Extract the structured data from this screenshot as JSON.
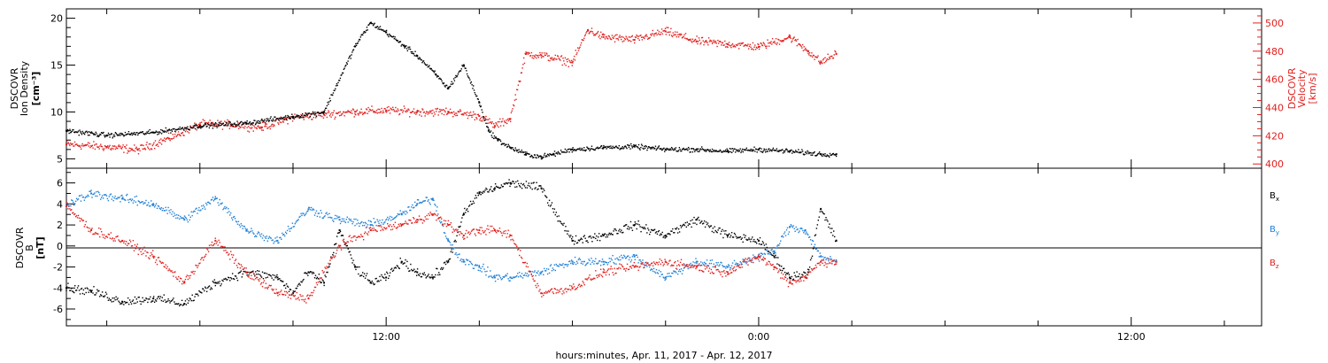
{
  "colors": {
    "black": "#000000",
    "red": "#e0201e",
    "blue": "#1e7fd6"
  },
  "chart_data": [
    {
      "type": "scatter",
      "panel": "top",
      "left_axis_label": [
        "DSCOVR",
        "Ion Density",
        "[cm⁻³]"
      ],
      "right_axis_label": [
        "DSCOVR",
        "Velocity",
        "[km/s]"
      ],
      "yticks_left": [
        "5",
        "10",
        "15",
        "20"
      ],
      "yticks_right": [
        "400",
        "420",
        "440",
        "460",
        "480",
        "500"
      ],
      "ylim_left": [
        4,
        21
      ],
      "ylim_right": [
        397,
        510
      ],
      "xlim_hours": [
        -10.3,
        28.2
      ],
      "series": [
        {
          "name": "Ion Density",
          "axis": "left",
          "color": "black",
          "x": [
            -10.3,
            -9.0,
            -7.5,
            -6.0,
            -4.5,
            -3.0,
            -2.0,
            -1.0,
            -0.5,
            0.0,
            0.6,
            1.0,
            1.6,
            2.0,
            2.5,
            3.0,
            3.3,
            3.6,
            4.0,
            4.5,
            5.0,
            5.4,
            6.0,
            7.0,
            8.0,
            9.0,
            10.0,
            11.0,
            12.0,
            13.0,
            14.0,
            14.5
          ],
          "y": [
            8,
            7.5,
            7.8,
            8.5,
            8.8,
            9.5,
            10,
            17,
            19.5,
            18.5,
            17,
            16,
            14,
            12.5,
            15,
            11,
            8,
            7,
            6.2,
            5.5,
            5.2,
            5.5,
            6.0,
            6.2,
            6.3,
            6.0,
            6.0,
            5.8,
            6.0,
            5.8,
            5.5,
            5.5
          ]
        },
        {
          "name": "Velocity",
          "axis": "right",
          "color": "red",
          "x": [
            -10.3,
            -9.0,
            -8.0,
            -7.0,
            -6.0,
            -5.0,
            -4.0,
            -3.0,
            -2.0,
            -1.0,
            0.0,
            1.0,
            2.0,
            3.0,
            3.5,
            4.0,
            4.5,
            5.0,
            6.0,
            6.5,
            7.0,
            8.0,
            9.0,
            10.0,
            11.0,
            12.0,
            13.0,
            13.6,
            14.0,
            14.5
          ],
          "y": [
            414,
            412,
            410,
            418,
            428,
            428,
            426,
            433,
            435,
            437,
            438,
            437,
            437,
            434,
            427,
            432,
            478,
            477,
            472,
            495,
            490,
            488,
            494,
            487,
            485,
            483,
            490,
            480,
            472,
            478
          ]
        }
      ]
    },
    {
      "type": "scatter",
      "panel": "bottom",
      "left_axis_label": [
        "DSCOVR",
        "B",
        "[nT]"
      ],
      "yticks_left": [
        "-6",
        "-4",
        "-2",
        "0",
        "2",
        "4",
        "6"
      ],
      "ylim": [
        -7.6,
        7.4
      ],
      "xlim_hours": [
        -10.3,
        28.2
      ],
      "legend": [
        "B",
        "B",
        "B"
      ],
      "legend_subscripts": [
        "x",
        "y",
        "z"
      ],
      "xticks": [
        "12:00",
        "0:00",
        "12:00"
      ],
      "xlabel": "hours:minutes, Apr. 11, 2017 - Apr. 12, 2017",
      "series": [
        {
          "name": "Bx",
          "color": "black",
          "x": [
            -10.3,
            -9.5,
            -8.5,
            -7.5,
            -6.5,
            -5.5,
            -4.5,
            -3.5,
            -3.0,
            -2.5,
            -2.0,
            -1.5,
            -1.0,
            -0.5,
            0.0,
            0.5,
            1.0,
            1.5,
            2.0,
            2.5,
            3.0,
            3.5,
            4.0,
            5.0,
            6.0,
            7.0,
            8.0,
            9.0,
            10.0,
            11.0,
            12.0,
            12.5,
            13.0,
            13.6,
            14.0,
            14.5
          ],
          "y": [
            -4.0,
            -4.3,
            -5.3,
            -5.0,
            -5.5,
            -3.5,
            -2.5,
            -3.0,
            -4.5,
            -2.5,
            -3.5,
            1.5,
            -2.0,
            -3.5,
            -3.0,
            -1.5,
            -2.5,
            -3.0,
            -1.5,
            3.0,
            5.0,
            5.5,
            6.0,
            5.5,
            0.5,
            1.0,
            2.0,
            1.0,
            2.5,
            1.0,
            0.5,
            -1.0,
            -3.0,
            -2.5,
            3.5,
            0.5
          ]
        },
        {
          "name": "By",
          "color": "blue",
          "x": [
            -10.3,
            -9.5,
            -8.5,
            -7.5,
            -6.5,
            -5.5,
            -4.5,
            -3.5,
            -2.5,
            -1.5,
            -0.5,
            0.5,
            1.0,
            1.5,
            2.0,
            2.5,
            3.0,
            3.5,
            4.0,
            5.0,
            6.0,
            7.0,
            8.0,
            9.0,
            10.0,
            11.0,
            12.0,
            12.5,
            13.0,
            13.5,
            14.0,
            14.5
          ],
          "y": [
            3.8,
            5.0,
            4.5,
            4.0,
            2.5,
            4.5,
            1.5,
            0.5,
            3.5,
            2.5,
            2.0,
            3.0,
            4.0,
            4.5,
            0.5,
            -1.5,
            -2.0,
            -3.0,
            -3.0,
            -2.5,
            -1.5,
            -1.5,
            -1.0,
            -3.0,
            -1.5,
            -2.0,
            -1.0,
            -0.5,
            1.8,
            1.5,
            -1.0,
            -1.5
          ]
        },
        {
          "name": "Bz",
          "color": "red",
          "x": [
            -10.3,
            -9.5,
            -8.5,
            -7.5,
            -6.5,
            -5.5,
            -4.5,
            -3.5,
            -2.5,
            -1.5,
            -0.5,
            0.5,
            1.0,
            1.5,
            2.0,
            2.5,
            3.0,
            3.5,
            4.0,
            5.0,
            6.0,
            7.0,
            8.0,
            9.0,
            10.0,
            11.0,
            12.0,
            12.5,
            13.0,
            13.5,
            14.0,
            14.5
          ],
          "y": [
            3.8,
            1.5,
            0.5,
            -1.0,
            -3.5,
            0.5,
            -2.5,
            -4.5,
            -5.0,
            0.0,
            1.5,
            2.0,
            2.5,
            3.0,
            2.0,
            1.0,
            1.5,
            1.5,
            1.0,
            -4.5,
            -4.0,
            -2.5,
            -2.0,
            -1.5,
            -2.0,
            -2.5,
            -1.0,
            -2.0,
            -3.5,
            -3.0,
            -1.5,
            -1.5
          ]
        }
      ]
    }
  ]
}
